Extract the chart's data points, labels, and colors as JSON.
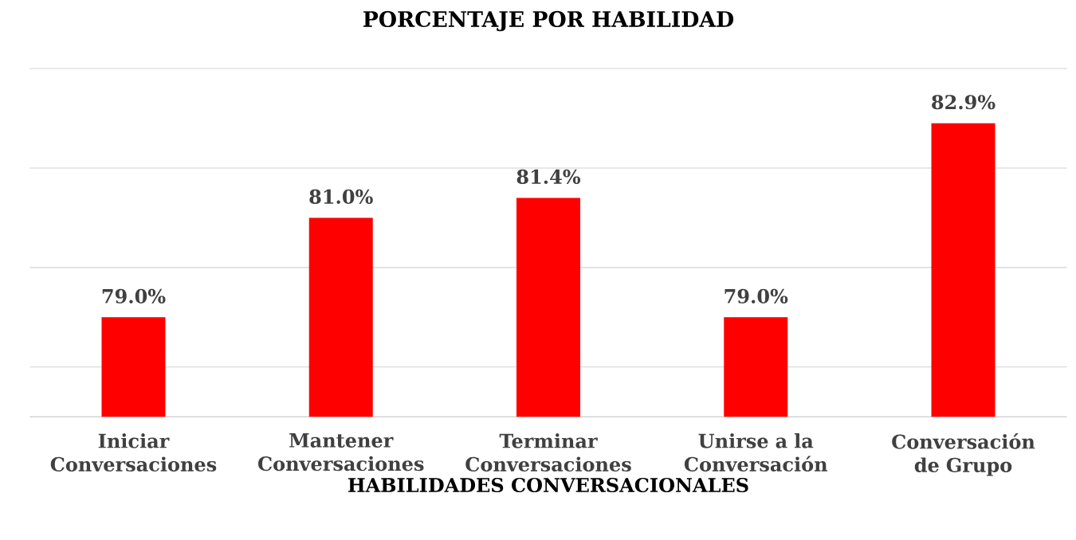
{
  "chart_data": {
    "type": "bar",
    "title": "PORCENTAJE POR HABILIDAD",
    "xlabel": "HABILIDADES CONVERSACIONALES",
    "categories": [
      "Iniciar Conversaciones",
      "Mantener Conversaciones",
      "Terminar Conversaciones",
      "Unirse a la Conversación",
      "Conversación de Grupo"
    ],
    "values": [
      79.0,
      81.0,
      81.4,
      79.0,
      82.9
    ],
    "value_labels": [
      "79.0%",
      "81.0%",
      "81.4%",
      "79.0%",
      "82.9%"
    ],
    "color": "#ff0000",
    "ylim": [
      77,
      84
    ],
    "tick_labels": "x",
    "grid": "y"
  }
}
